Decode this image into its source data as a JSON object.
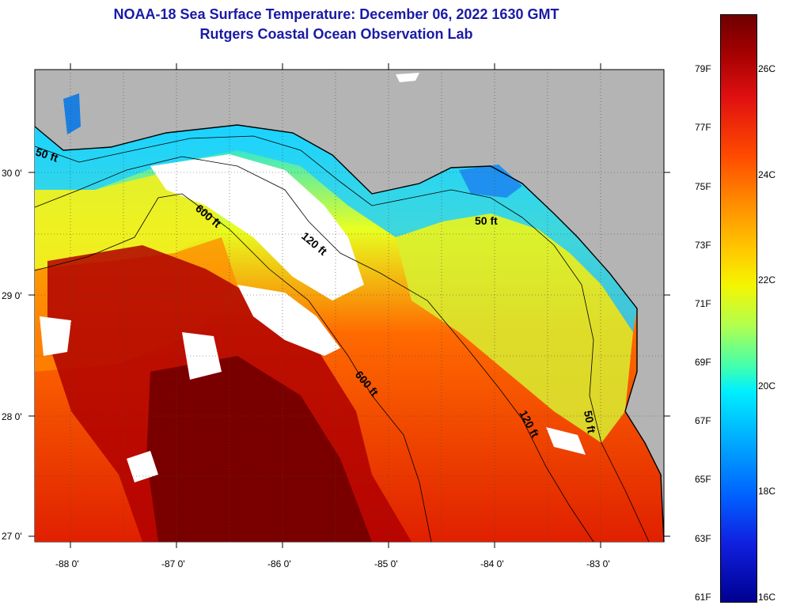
{
  "title": {
    "line1": "NOAA-18 Sea Surface Temperature:  December 06, 2022 1630 GMT",
    "line2": "Rutgers Coastal Ocean Observation Lab"
  },
  "axes": {
    "lat_labels": [
      "30 0'",
      "29 0'",
      "28 0'",
      "27 0'"
    ],
    "lon_labels": [
      "-88 0'",
      "-87 0'",
      "-86 0'",
      "-85 0'",
      "-84 0'",
      "-83 0'"
    ]
  },
  "contours": {
    "label_50a": "50 ft",
    "label_50b": "50 ft",
    "label_50c": "50 ft",
    "label_120a": "120 ft",
    "label_120b": "120 ft",
    "label_600a": "600 ft",
    "label_600b": "600 ft"
  },
  "colorbar": {
    "fahrenheit": [
      "79F",
      "77F",
      "75F",
      "73F",
      "71F",
      "69F",
      "67F",
      "65F",
      "63F",
      "61F"
    ],
    "celsius": [
      "26C",
      "24C",
      "22C",
      "20C",
      "18C",
      "16C"
    ]
  },
  "colors": {
    "land": "#b4b4b4",
    "cloud": "#ffffff",
    "warm": "#7a0000",
    "title": "#1a1aa6"
  }
}
